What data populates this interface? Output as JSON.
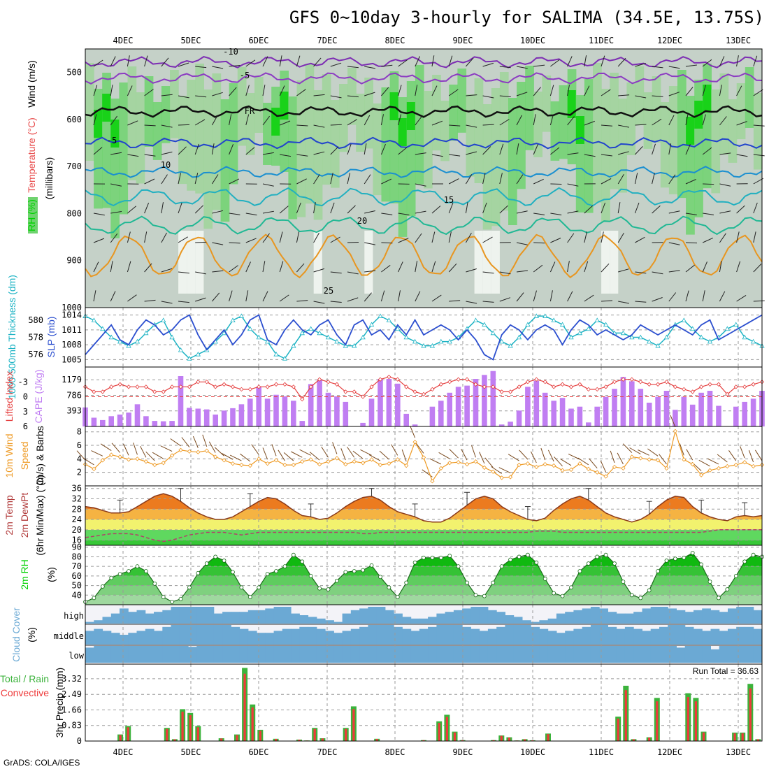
{
  "title": "GFS 0~10day 3-hourly for SALIMA (34.5E, 13.75S)",
  "credit": "GrADS: COLA/IGES",
  "colors": {
    "green_dark": "#00d200",
    "green_mid": "#6fd36f",
    "gray_band": "#c5d1c8",
    "wind_bar": "#2c4fcf",
    "thickness": "#1cb3c4",
    "lifted": "#e53f3f",
    "cape": "#c07ef2",
    "wind10": "#ee9a24",
    "barb": "#7a4a1e",
    "temp_orange": "#ec7b1f",
    "dew": "#b0426a",
    "cloud": "#6ba9d4",
    "precip_green": "#3cb33c",
    "precip_red": "#ee3a3a"
  },
  "chart_data": [
    {
      "type": "heatmap",
      "name": "upper-air cross section",
      "x_dates": [
        "4DEC",
        "5DEC",
        "6DEC",
        "7DEC",
        "8DEC",
        "9DEC",
        "10DEC",
        "11DEC",
        "12DEC",
        "13DEC"
      ],
      "ylabel": "(millibars)",
      "y_ticks": [
        "500",
        "600",
        "700",
        "800",
        "900",
        "1000"
      ],
      "ylim": [
        1000,
        450
      ],
      "side_labels": [
        "Wind (m/s)",
        "Temperature (°C)",
        "RH (%)"
      ],
      "contour_labels": [
        "-10",
        "-5",
        "FR",
        "-5",
        "10",
        "15",
        "20",
        "25"
      ]
    },
    {
      "type": "line",
      "name": "thickness and SLP",
      "ylabel_left": "1000-500mb Thickness (dm)",
      "ylabel_right": "SLP (mb)",
      "left_ticks": [
        "580",
        "578",
        "576"
      ],
      "right_ticks": [
        "1014",
        "1011",
        "1008",
        "1005"
      ],
      "series": [
        {
          "name": "SLP",
          "axis": "right",
          "values": [
            1006,
            1008,
            1010,
            1012,
            1009,
            1008,
            1011,
            1013,
            1012,
            1010,
            1011,
            1013,
            1014,
            1010,
            1007,
            1009,
            1011,
            1008,
            1010,
            1013,
            1014,
            1009,
            1008,
            1011,
            1013,
            1011,
            1010,
            1012,
            1013,
            1010,
            1008,
            1012,
            1013,
            1010,
            1011,
            1009,
            1012,
            1010,
            1013,
            1010,
            1011,
            1012,
            1011,
            1009,
            1011,
            1009,
            1006,
            1005,
            1010,
            1012,
            1011,
            1009,
            1011,
            1012,
            1011,
            1008,
            1011,
            1013,
            1012,
            1010,
            1011,
            1010,
            1009,
            1010,
            1012,
            1011,
            1010,
            1011,
            1012,
            1011,
            1010,
            1012,
            1013,
            1009,
            1010,
            1011,
            1012,
            1013,
            1014
          ]
        },
        {
          "name": "Thickness",
          "axis": "left",
          "values": [
            580.5,
            580,
            579,
            578,
            577.5,
            577,
            577.5,
            578.5,
            579.5,
            580,
            578,
            576.5,
            575.5,
            576,
            576.5,
            577.5,
            578.5,
            580,
            580.5,
            579,
            578,
            577.5,
            576,
            575.5,
            577,
            578.5,
            579,
            578.5,
            578,
            577.5,
            577,
            577,
            578,
            579.5,
            580.5,
            580,
            579,
            578,
            577.5,
            577,
            577,
            577.5,
            577.5,
            578,
            579,
            580,
            579.5,
            578.5,
            577.5,
            577,
            578,
            579.5,
            580.5,
            580.5,
            580,
            579.5,
            578,
            578.5,
            579,
            580,
            579.5,
            578.5,
            578.5,
            578,
            578,
            577.5,
            577,
            578,
            579.5,
            580,
            579,
            578,
            577.5,
            578,
            579,
            579.5,
            578,
            577.5,
            577
          ]
        }
      ]
    },
    {
      "type": "bar",
      "name": "lifted index and CAPE",
      "ylabel_left": "Lifted Index",
      "ylabel_right": "CAPE (J/kg)",
      "left_ticks": [
        "-3",
        "0",
        "3",
        "6"
      ],
      "right_ticks": [
        "1179",
        "786",
        "393"
      ],
      "series": [
        {
          "name": "CAPE",
          "values": [
            480,
            220,
            160,
            260,
            300,
            350,
            560,
            260,
            140,
            130,
            140,
            1270,
            470,
            450,
            430,
            300,
            400,
            460,
            560,
            700,
            1000,
            700,
            800,
            760,
            650,
            140,
            1070,
            1170,
            850,
            760,
            620,
            0,
            90,
            700,
            1200,
            1200,
            1080,
            320,
            50,
            0,
            500,
            650,
            850,
            1000,
            1030,
            1200,
            1300,
            1400,
            50,
            120,
            400,
            1000,
            1150,
            850,
            650,
            720,
            450,
            500,
            100,
            500,
            750,
            950,
            1250,
            1140,
            950,
            600,
            750,
            900,
            420,
            750,
            550,
            850,
            900,
            520,
            0,
            500,
            620,
            700,
            900
          ]
        },
        {
          "name": "Lifted Index",
          "values": [
            -2,
            -1,
            -1,
            -2,
            -2.5,
            -2,
            -2,
            -2,
            -1,
            -1,
            -2,
            -2,
            -2,
            -3,
            -3,
            -2,
            -2.5,
            -2,
            -1.5,
            -1.5,
            -2,
            -2,
            -2.5,
            -2.5,
            -2,
            0.5,
            -2,
            -3.5,
            -3,
            -2.5,
            -1,
            -1,
            0,
            -2,
            -3.5,
            -4,
            -3.5,
            -2,
            -1,
            -0.5,
            -1.5,
            -2.5,
            -3,
            -3.5,
            -3.5,
            -2.5,
            -2,
            -2,
            -1,
            -1,
            -2,
            -3,
            -3.5,
            -3,
            -2,
            -2.5,
            -2,
            -2.5,
            -1.5,
            -1.5,
            -2,
            -3,
            -3.5,
            -3.5,
            -3,
            -2.5,
            -2.5,
            -3,
            -2,
            -1.5,
            -1,
            -2,
            -2.5,
            -2.5,
            -0.5,
            -2,
            -2,
            -2.5,
            -3
          ]
        }
      ]
    },
    {
      "type": "line",
      "name": "10m wind speed",
      "ylabel": "10m Wind Speed (m/s) & Barbs",
      "y_ticks": [
        "8",
        "6",
        "4",
        "2"
      ],
      "ylim": [
        0,
        8
      ],
      "values": [
        3.2,
        2.5,
        3.8,
        4.6,
        4.3,
        3.9,
        4,
        3.6,
        3.1,
        3.4,
        4.5,
        5.3,
        5.1,
        5,
        5.2,
        4.3,
        3.8,
        3.3,
        3.1,
        3,
        4,
        3.3,
        3.8,
        3.1,
        3.1,
        3.6,
        3.9,
        3.2,
        3.6,
        4.1,
        3.2,
        3.6,
        3.4,
        3.9,
        3.1,
        3.3,
        3.9,
        3,
        6.5,
        4.2,
        0.7,
        2.6,
        3.4,
        3.5,
        3.2,
        3.6,
        2.7,
        2.1,
        1.2,
        1.3,
        3.1,
        3.3,
        2.8,
        3.2,
        3,
        2.3,
        2.4,
        3.3,
        2.5,
        2,
        1.4,
        2.8,
        2.6,
        4.3,
        4.1,
        3.9,
        3.8,
        2.6,
        8.1,
        3.9,
        3.2,
        1.6,
        2.3,
        2.6,
        2.9,
        3.1,
        3.5,
        2.9,
        3.1
      ]
    },
    {
      "type": "area",
      "name": "2m temperature and dewpoint",
      "ylabel": "2m Temp 2m DewPt (6hr Min/Max) (°C)",
      "y_ticks": [
        "36",
        "32",
        "28",
        "24",
        "20",
        "16"
      ],
      "ylim": [
        14,
        36
      ],
      "series": [
        {
          "name": "2m Temp",
          "values": [
            29,
            28.5,
            27.5,
            26.5,
            26.5,
            27,
            29,
            31,
            33,
            34,
            33,
            31,
            28.5,
            26.5,
            25,
            24,
            24,
            25,
            27,
            29,
            31,
            32.5,
            32,
            30,
            27.5,
            25.5,
            25,
            24,
            24.5,
            26.5,
            29,
            31,
            32.5,
            33,
            31.5,
            29,
            27,
            26,
            25,
            23.5,
            23,
            23,
            24.5,
            27,
            29.5,
            32,
            33,
            32,
            29,
            27,
            25.5,
            24,
            23.5,
            24.5,
            27.5,
            30,
            32,
            33,
            31.5,
            29,
            26.5,
            25,
            24,
            23,
            24,
            26,
            29,
            31.5,
            33,
            32.5,
            29,
            26.5,
            25,
            24,
            23.5,
            25,
            25.5,
            25,
            25.5
          ]
        },
        {
          "name": "2m DewPt",
          "values": [
            17,
            17.5,
            18,
            18.5,
            18.5,
            18.5,
            18,
            17,
            16,
            15.5,
            16,
            17,
            18,
            18.5,
            19,
            19,
            19,
            18.5,
            18,
            18.5,
            19,
            19,
            19,
            19,
            19,
            19,
            19,
            19,
            19,
            19,
            19,
            19,
            18.5,
            18.5,
            19,
            19,
            19,
            19,
            19,
            19,
            19,
            19,
            19,
            19,
            19,
            19,
            19,
            19,
            19,
            19,
            19,
            19,
            19.5,
            19.5,
            19.5,
            19,
            19,
            19,
            19,
            19,
            19,
            19,
            19,
            19,
            19,
            19,
            19,
            19,
            19,
            19,
            19,
            19,
            19.5,
            20,
            20,
            20,
            20,
            20,
            20
          ]
        }
      ]
    },
    {
      "type": "area",
      "name": "2m relative humidity",
      "ylabel": "2m RH (%)",
      "y_ticks": [
        "90",
        "80",
        "70",
        "60",
        "50",
        "40"
      ],
      "ylim": [
        30,
        92
      ],
      "values": [
        33,
        37,
        49,
        58,
        62,
        65,
        70,
        65,
        52,
        38,
        33,
        36,
        48,
        63,
        73,
        80,
        76,
        64,
        48,
        38,
        48,
        62,
        65,
        70,
        82,
        75,
        60,
        47,
        46,
        55,
        64,
        65,
        66,
        71,
        59,
        48,
        38,
        53,
        74,
        79,
        79,
        79,
        81,
        70,
        53,
        40,
        39,
        53,
        70,
        77,
        80,
        82,
        74,
        57,
        42,
        39,
        48,
        65,
        73,
        80,
        82,
        73,
        54,
        40,
        37,
        45,
        65,
        76,
        78,
        79,
        84,
        72,
        54,
        37,
        46,
        60,
        75,
        82,
        80
      ]
    },
    {
      "type": "bar",
      "name": "cloud cover",
      "ylabel": "Cloud Cover (%)",
      "y_ticks": [
        "high",
        "middle",
        "low"
      ],
      "series": [
        {
          "name": "high",
          "values": [
            10,
            20,
            40,
            60,
            90,
            70,
            80,
            60,
            70,
            80,
            100,
            100,
            100,
            100,
            100,
            60,
            70,
            70,
            70,
            80,
            80,
            90,
            100,
            100,
            60,
            50,
            40,
            30,
            20,
            10,
            60,
            80,
            90,
            100,
            100,
            80,
            60,
            40,
            30,
            30,
            40,
            60,
            70,
            80,
            90,
            100,
            100,
            80,
            70,
            50,
            40,
            20,
            10,
            20,
            30,
            60,
            70,
            80,
            90,
            100,
            90,
            70,
            60,
            60,
            70,
            90,
            100,
            100,
            90,
            80,
            70,
            80,
            90,
            80,
            70,
            90,
            100,
            100,
            80
          ]
        },
        {
          "name": "middle",
          "values": [
            70,
            80,
            70,
            60,
            50,
            60,
            70,
            80,
            70,
            90,
            100,
            100,
            100,
            100,
            100,
            100,
            100,
            90,
            80,
            70,
            60,
            60,
            70,
            80,
            80,
            90,
            90,
            80,
            70,
            60,
            70,
            80,
            90,
            100,
            100,
            100,
            90,
            80,
            70,
            80,
            90,
            100,
            100,
            100,
            90,
            80,
            70,
            80,
            90,
            100,
            100,
            100,
            90,
            80,
            70,
            60,
            70,
            80,
            90,
            100,
            100,
            90,
            80,
            90,
            80,
            70,
            80,
            90,
            100,
            100,
            90,
            80,
            70,
            80,
            70,
            80,
            90,
            90,
            80
          ]
        },
        {
          "name": "low",
          "values": [
            90,
            100,
            100,
            100,
            100,
            100,
            100,
            100,
            100,
            100,
            100,
            100,
            95,
            100,
            100,
            100,
            100,
            100,
            100,
            100,
            100,
            100,
            100,
            100,
            100,
            100,
            100,
            100,
            100,
            100,
            100,
            100,
            100,
            100,
            100,
            100,
            100,
            100,
            100,
            100,
            100,
            100,
            100,
            100,
            100,
            100,
            100,
            100,
            100,
            100,
            100,
            100,
            100,
            100,
            100,
            100,
            100,
            100,
            100,
            100,
            100,
            100,
            100,
            100,
            100,
            100,
            100,
            100,
            100,
            90,
            100,
            100,
            100,
            80,
            100,
            100,
            100,
            100,
            100
          ]
        }
      ]
    },
    {
      "type": "bar",
      "name": "3hr precipitation",
      "ylabel": "3hr Precip (mm)",
      "legend": [
        "Total / Rain",
        "Convective"
      ],
      "annotation": "Run Total = 36.63",
      "y_ticks": [
        "3.32",
        "2.49",
        "1.66",
        "0.83",
        "0"
      ],
      "ylim": [
        0,
        4.1
      ],
      "values": [
        0,
        0,
        0,
        0,
        0.35,
        0.8,
        0,
        0,
        0,
        0,
        0.7,
        0.1,
        1.7,
        1.5,
        0.8,
        0,
        0,
        0.15,
        0,
        0.35,
        3.9,
        1.95,
        0.6,
        0,
        0.12,
        0,
        0,
        0.08,
        0.03,
        0.7,
        0.15,
        0,
        0,
        0.7,
        1.85,
        0,
        0,
        0.12,
        0,
        0,
        0,
        0,
        0,
        0.05,
        0,
        1.05,
        1.4,
        0.5,
        0.05,
        0,
        0,
        0,
        0.05,
        0.3,
        0.2,
        0.03,
        0.1,
        0.04,
        0,
        0.4,
        0,
        0,
        0,
        0,
        0,
        0,
        0,
        0,
        1.3,
        2.95,
        0.1,
        0,
        0.2,
        2.3,
        0,
        0,
        0,
        2.55,
        2.3,
        0.5,
        0,
        0,
        0,
        0.45,
        0.45,
        3.05,
        0.1
      ]
    }
  ]
}
